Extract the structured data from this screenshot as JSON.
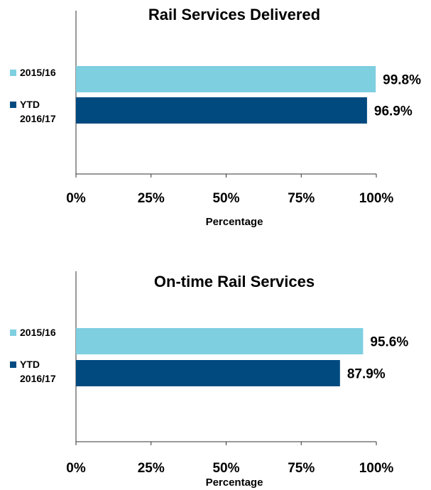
{
  "chart_data": [
    {
      "type": "bar",
      "orientation": "horizontal",
      "title": "Rail Services Delivered",
      "xlabel": "Percentage",
      "xlim": [
        0,
        100
      ],
      "xticks": [
        {
          "value": 0,
          "label": "0%"
        },
        {
          "value": 25,
          "label": "25%"
        },
        {
          "value": 50,
          "label": "50%"
        },
        {
          "value": 75,
          "label": "75%"
        },
        {
          "value": 100,
          "label": "100%"
        }
      ],
      "series": [
        {
          "name": "2015/16",
          "color": "#7ecfe0",
          "values": [
            99.8
          ],
          "value_labels": [
            "99.8%"
          ]
        },
        {
          "name": "YTD 2016/17",
          "color": "#004a80",
          "values": [
            96.9
          ],
          "value_labels": [
            "96.9%"
          ]
        }
      ]
    },
    {
      "type": "bar",
      "orientation": "horizontal",
      "title": "On-time Rail Services",
      "xlabel": "Percentage",
      "xlim": [
        0,
        100
      ],
      "xticks": [
        {
          "value": 0,
          "label": "0%"
        },
        {
          "value": 25,
          "label": "25%"
        },
        {
          "value": 50,
          "label": "50%"
        },
        {
          "value": 75,
          "label": "75%"
        },
        {
          "value": 100,
          "label": "100%"
        }
      ],
      "series": [
        {
          "name": "2015/16",
          "color": "#7ecfe0",
          "values": [
            95.6
          ],
          "value_labels": [
            "95.6%"
          ]
        },
        {
          "name": "YTD 2016/17",
          "color": "#004a80",
          "values": [
            87.9
          ],
          "value_labels": [
            "87.9%"
          ]
        }
      ]
    }
  ]
}
